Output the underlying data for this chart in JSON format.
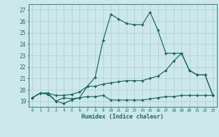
{
  "xlabel": "Humidex (Indice chaleur)",
  "xlim": [
    -0.5,
    23.5
  ],
  "ylim": [
    18.5,
    27.5
  ],
  "xticks": [
    0,
    1,
    2,
    3,
    4,
    5,
    6,
    7,
    8,
    9,
    10,
    11,
    12,
    13,
    14,
    15,
    16,
    17,
    18,
    19,
    20,
    21,
    22,
    23
  ],
  "yticks": [
    19,
    20,
    21,
    22,
    23,
    24,
    25,
    26,
    27
  ],
  "bg_color": "#cce8ec",
  "line_color": "#1a6b5a",
  "grid_color": "#aacdd4",
  "line1": [
    19.3,
    19.7,
    19.6,
    19.0,
    18.8,
    19.1,
    19.3,
    20.3,
    21.1,
    24.3,
    26.6,
    26.2,
    25.8,
    25.7,
    25.7,
    26.8,
    25.2,
    23.2,
    23.2,
    23.2,
    21.7,
    21.3,
    21.3,
    19.5
  ],
  "line2": [
    19.3,
    19.7,
    19.7,
    19.5,
    19.5,
    19.6,
    19.8,
    20.3,
    20.3,
    20.5,
    20.6,
    20.7,
    20.8,
    20.8,
    20.8,
    21.0,
    21.2,
    21.7,
    22.5,
    23.2,
    21.7,
    21.3,
    21.3,
    19.5
  ],
  "line3": [
    19.3,
    19.7,
    19.7,
    19.0,
    19.3,
    19.2,
    19.3,
    19.4,
    19.4,
    19.5,
    19.1,
    19.1,
    19.1,
    19.1,
    19.1,
    19.2,
    19.3,
    19.4,
    19.4,
    19.5,
    19.5,
    19.5,
    19.5,
    19.5
  ]
}
